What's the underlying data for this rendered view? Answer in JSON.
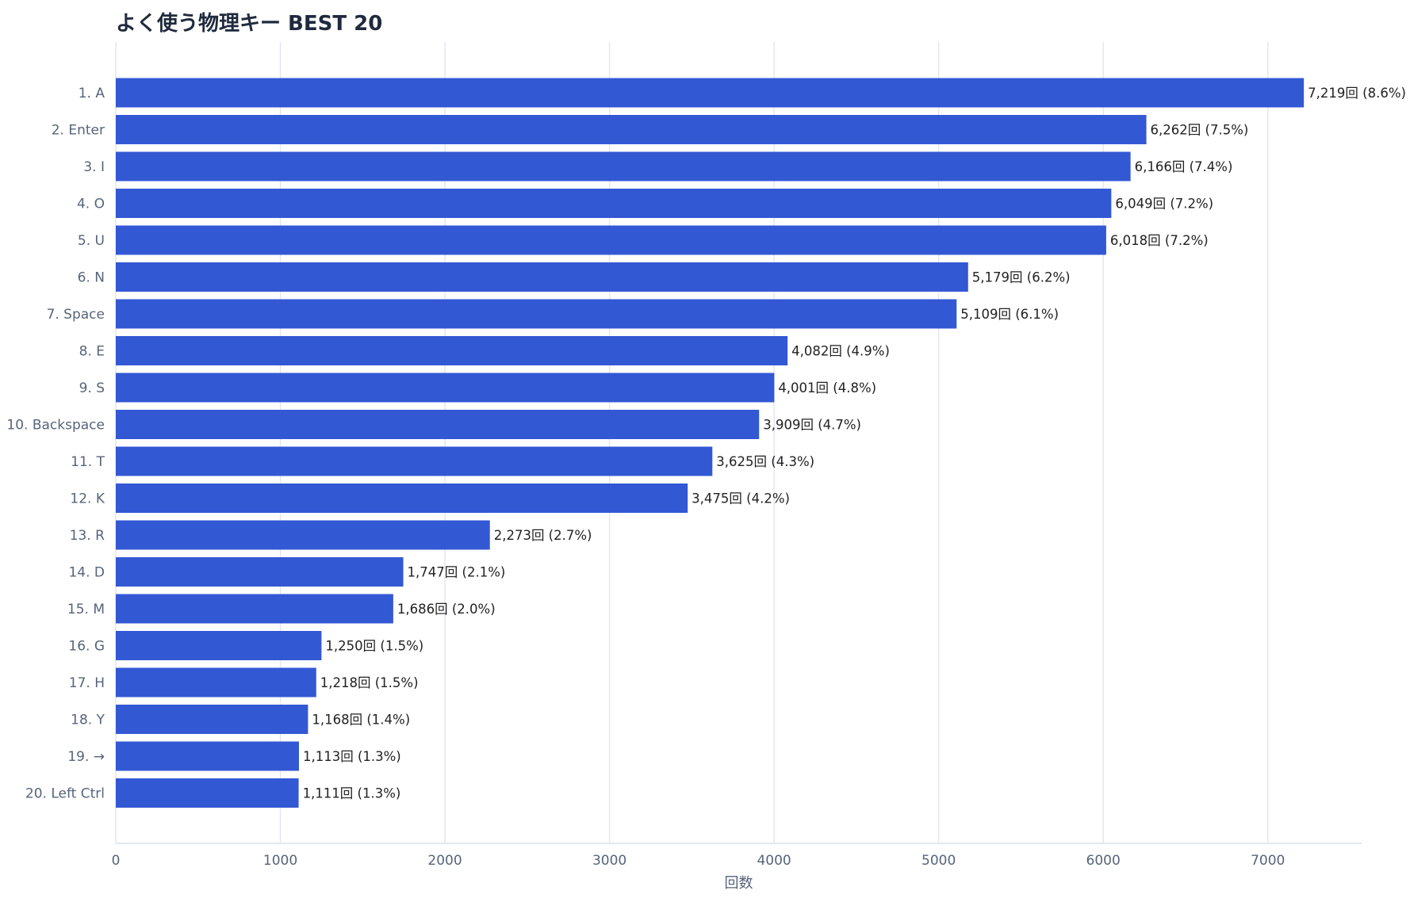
{
  "chart_data": {
    "type": "bar",
    "orientation": "horizontal",
    "title": "よく使う物理キー BEST 20",
    "xlabel": "回数",
    "ylabel": "",
    "xlim": [
      0,
      7570
    ],
    "x_ticks": [
      0,
      1000,
      2000,
      3000,
      4000,
      5000,
      6000,
      7000
    ],
    "grid": true,
    "legend": "none",
    "bar_color": "#3358d4",
    "categories": [
      "1. A",
      "2. Enter",
      "3. I",
      "4. O",
      "5. U",
      "6. N",
      "7. Space",
      "8. E",
      "9. S",
      "10. Backspace",
      "11. T",
      "12. K",
      "13. R",
      "14. D",
      "15. M",
      "16. G",
      "17. H",
      "18. Y",
      "19. →",
      "20. Left Ctrl"
    ],
    "values": [
      7219,
      6262,
      6166,
      6049,
      6018,
      5179,
      5109,
      4082,
      4001,
      3909,
      3625,
      3475,
      2273,
      1747,
      1686,
      1250,
      1218,
      1168,
      1113,
      1111
    ],
    "data_labels": [
      "7,219回  (8.6%)",
      "6,262回  (7.5%)",
      "6,166回  (7.4%)",
      "6,049回  (7.2%)",
      "6,018回  (7.2%)",
      "5,179回  (6.2%)",
      "5,109回  (6.1%)",
      "4,082回  (4.9%)",
      "4,001回  (4.8%)",
      "3,909回  (4.7%)",
      "3,625回  (4.3%)",
      "3,475回  (4.2%)",
      "2,273回  (2.7%)",
      "1,747回  (2.1%)",
      "1,686回  (2.0%)",
      "1,250回  (1.5%)",
      "1,218回  (1.5%)",
      "1,168回  (1.4%)",
      "1,113回  (1.3%)",
      "1,111回  (1.3%)"
    ]
  }
}
